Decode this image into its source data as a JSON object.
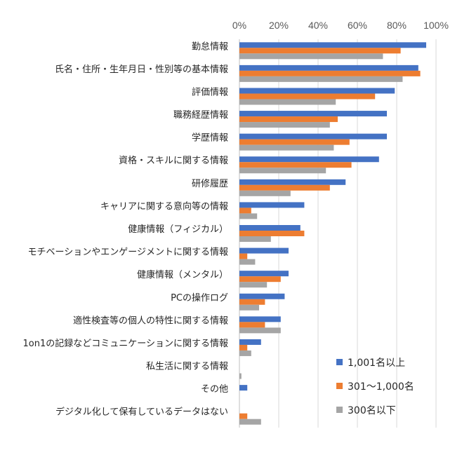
{
  "chart_data": {
    "type": "bar",
    "orientation": "horizontal",
    "categories": [
      "勤怠情報",
      "氏名・住所・生年月日・性別等の基本情報",
      "評価情報",
      "職務経歴情報",
      "学歴情報",
      "資格・スキルに関する情報",
      "研修履歴",
      "キャリアに関する意向等の情報",
      "健康情報（フィジカル）",
      "モチベーションやエンゲージメントに関する情報",
      "健康情報（メンタル）",
      "PCの操作ログ",
      "適性検査等の個人の特性に関する情報",
      "1on1の記録などコミュニケーションに関する情報",
      "私生活に関する情報",
      "その他",
      "デジタル化して保有しているデータはない"
    ],
    "series": [
      {
        "name": "1,001名以上",
        "color": "#4472C4",
        "values": [
          95,
          91,
          79,
          75,
          75,
          71,
          54,
          33,
          31,
          25,
          25,
          23,
          21,
          11,
          0,
          4,
          0
        ]
      },
      {
        "name": "301～1,000名",
        "color": "#ED7D31",
        "values": [
          82,
          92,
          69,
          50,
          56,
          57,
          46,
          6,
          33,
          4,
          21,
          13,
          13,
          4,
          0,
          0,
          4
        ]
      },
      {
        "name": "300名以下",
        "color": "#A5A5A5",
        "values": [
          73,
          83,
          49,
          46,
          48,
          44,
          26,
          9,
          16,
          8,
          14,
          10,
          21,
          6,
          1,
          0,
          11
        ]
      }
    ],
    "xticks": [
      "0%",
      "20%",
      "40%",
      "60%",
      "80%",
      "100%"
    ],
    "xlim": [
      0,
      100
    ],
    "x_axis_position": "top",
    "grid": true,
    "legend_position": "bottom-right"
  }
}
